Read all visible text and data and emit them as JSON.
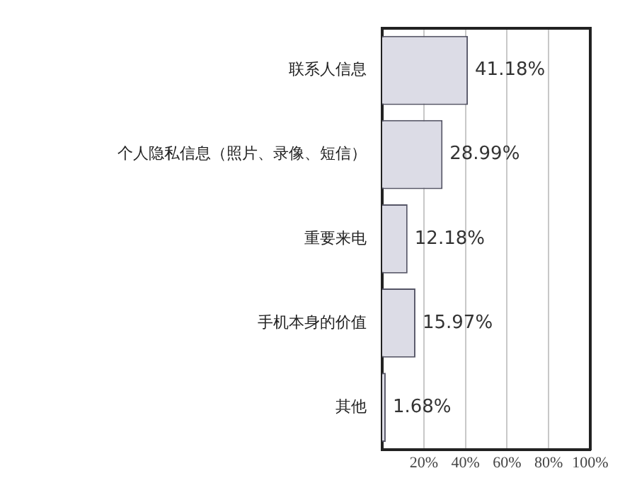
{
  "chart_data": {
    "type": "bar",
    "orientation": "horizontal",
    "categories": [
      "联系人信息",
      "个人隐私信息（照片、录像、短信）",
      "重要来电",
      "手机本身的价值",
      "其他"
    ],
    "values": [
      41.18,
      28.99,
      12.18,
      15.97,
      1.68
    ],
    "value_labels": [
      "41.18%",
      "28.99%",
      "12.18%",
      "15.97%",
      "1.68%"
    ],
    "color": "#dcdce6",
    "xlim": [
      0,
      100
    ],
    "xticks": [
      {
        "value": 20,
        "label": "20%"
      },
      {
        "value": 40,
        "label": "40%"
      },
      {
        "value": 60,
        "label": "60%"
      },
      {
        "value": 80,
        "label": "80%"
      },
      {
        "value": 100,
        "label": "100%"
      }
    ],
    "grid": "x",
    "legend": false
  }
}
